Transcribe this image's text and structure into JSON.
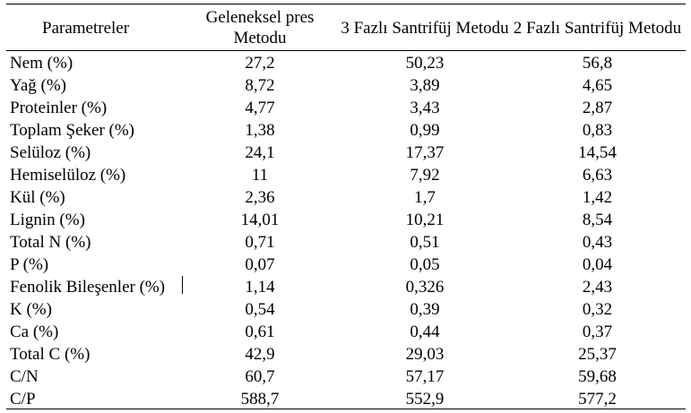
{
  "table": {
    "headers": [
      "Parametreler",
      "Geleneksel pres Metodu",
      "3 Fazlı Santrifüj Metodu",
      "2 Fazlı Santrifüj Metodu"
    ],
    "rows": [
      [
        "Nem (%)",
        "27,2",
        "50,23",
        "56,8"
      ],
      [
        "Yağ (%)",
        "8,72",
        "3,89",
        "4,65"
      ],
      [
        "Proteinler (%)",
        "4,77",
        "3,43",
        "2,87"
      ],
      [
        "Toplam Şeker (%)",
        "1,38",
        "0,99",
        "0,83"
      ],
      [
        "Selüloz (%)",
        "24,1",
        "17,37",
        "14,54"
      ],
      [
        "Hemiselüloz (%)",
        "11",
        "7,92",
        "6,63"
      ],
      [
        "Kül (%)",
        "2,36",
        "1,7",
        "1,42"
      ],
      [
        "Lignin (%)",
        "14,01",
        "10,21",
        "8,54"
      ],
      [
        "Total N (%)",
        "0,71",
        "0,51",
        "0,43"
      ],
      [
        "P (%)",
        "0,07",
        "0,05",
        "0,04"
      ],
      [
        "Fenolik Bileşenler (%)",
        "1,14",
        "0,326",
        "2,43"
      ],
      [
        "K (%)",
        "0,54",
        "0,39",
        "0,32"
      ],
      [
        "Ca (%)",
        "0,61",
        "0,44",
        "0,37"
      ],
      [
        "Total C (%)",
        "42,9",
        "29,03",
        "25,37"
      ],
      [
        "C/N",
        "60,7",
        "57,17",
        "59,68"
      ],
      [
        "C/P",
        "588,7",
        "552,9",
        "577,2"
      ]
    ]
  }
}
